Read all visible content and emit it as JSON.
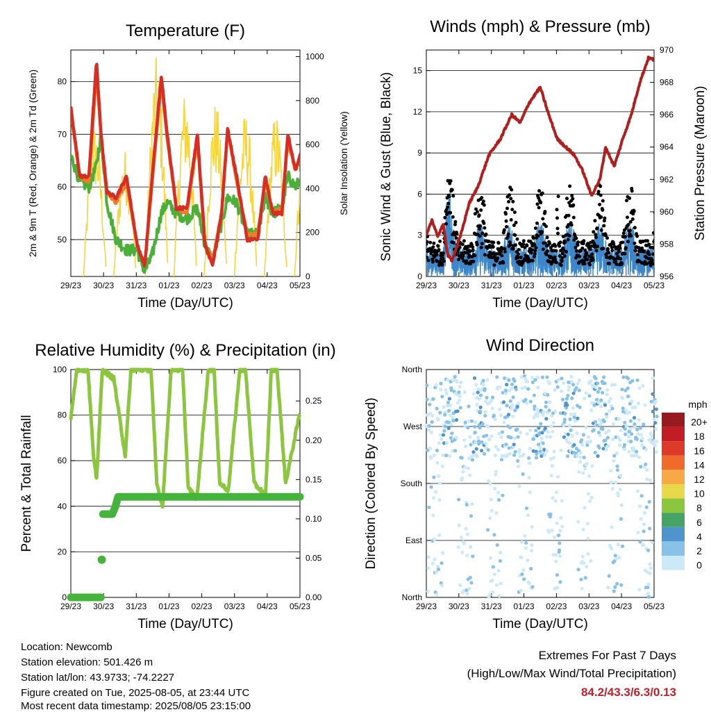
{
  "time_ticks": [
    "29/23",
    "30/23",
    "31/23",
    "01/23",
    "02/23",
    "03/23",
    "04/23",
    "05/23"
  ],
  "chart_data": [
    {
      "type": "line",
      "title": "Temperature (F)",
      "xlabel": "Time (Day/UTC)",
      "ylabel": "2m & 9m T (Red, Orange) & 2m Td (Green)",
      "y2label": "Solar Insolation (Yellow)",
      "ylim": [
        43,
        86
      ],
      "y2lim": [
        0,
        1030
      ],
      "yticks": [
        "50",
        "60",
        "70",
        "80"
      ],
      "y2ticks": [
        "0",
        "200",
        "400",
        "600",
        "800",
        "1000"
      ],
      "grid": "horizontal",
      "x_days": [
        0,
        0.3,
        0.6,
        0.85,
        1.0,
        1.2,
        1.5,
        1.85,
        2.2,
        2.45,
        2.7,
        3.0,
        3.2,
        3.5,
        3.85,
        4.2,
        4.45,
        4.7,
        5.0,
        5.2,
        5.5,
        5.85,
        6.2,
        6.45,
        6.7,
        7.0,
        7.2,
        7.45,
        7.7
      ],
      "series": [
        {
          "name": "2m T",
          "color": "#d62e24",
          "values": [
            75,
            62,
            62,
            84,
            70,
            59,
            58,
            62,
            49,
            45,
            62,
            81,
            70,
            56,
            56,
            70,
            49,
            45,
            55,
            71,
            62,
            50,
            50,
            62,
            55,
            55,
            70,
            63,
            68
          ]
        },
        {
          "name": "9m T",
          "color": "#f07d26",
          "values": [
            74,
            62,
            61,
            82,
            70,
            59,
            57,
            61,
            49,
            45,
            61,
            80,
            69,
            56,
            55,
            69,
            49,
            46,
            55,
            71,
            61,
            51,
            51,
            61,
            55,
            56,
            69,
            63,
            67
          ]
        },
        {
          "name": "2m Td",
          "color": "#4caf3a",
          "values": [
            66,
            61,
            60,
            64,
            70,
            57,
            50,
            48,
            48,
            44,
            47,
            55,
            57,
            55,
            54,
            56,
            49,
            46,
            53,
            58,
            57,
            51,
            51,
            58,
            55,
            56,
            62,
            60,
            62
          ]
        },
        {
          "name": "Solar Insolation",
          "color": "#f5d43c",
          "axis": "right",
          "peaks": [
            [
              0.8,
              700
            ],
            [
              1.8,
              580
            ],
            [
              2.85,
              1000
            ],
            [
              3.8,
              850
            ],
            [
              4.8,
              800
            ],
            [
              5.8,
              750
            ],
            [
              6.8,
              750
            ],
            [
              7.8,
              780
            ]
          ]
        }
      ]
    },
    {
      "type": "scatter",
      "title": "Winds (mph) & Pressure (mb)",
      "xlabel": "Time (Day/UTC)",
      "ylabel": "Sonic Wind & Gust (Blue, Black)",
      "y2label": "Station Pressure (Maroon)",
      "ylim": [
        0,
        16.5
      ],
      "y2lim": [
        956,
        970
      ],
      "yticks": [
        "0",
        "3",
        "6",
        "9",
        "12",
        "15"
      ],
      "y2ticks": [
        "956",
        "958",
        "960",
        "962",
        "964",
        "966",
        "968",
        "970"
      ],
      "grid": "horizontal",
      "series": [
        {
          "name": "Sonic Wind",
          "color": "#3d87c9"
        },
        {
          "name": "Gust",
          "color": "#000000"
        },
        {
          "name": "Station Pressure",
          "color": "#b01e1e",
          "axis": "right",
          "x_days": [
            0,
            0.2,
            0.4,
            0.6,
            0.75,
            0.9,
            1.2,
            1.5,
            1.8,
            2.2,
            2.6,
            3.0,
            3.3,
            3.6,
            4.0,
            4.3,
            4.6,
            4.9,
            5.2,
            5.5,
            5.8,
            6.1,
            6.3,
            6.6,
            6.9,
            7.2,
            7.5,
            7.8,
            8.0
          ],
          "values": [
            958.5,
            959.5,
            958.5,
            959.2,
            957.3,
            957.0,
            958.5,
            960.5,
            961.5,
            963.5,
            964.5,
            966.0,
            965.5,
            966.7,
            967.7,
            966.0,
            964.5,
            964.0,
            963.5,
            962.5,
            961.0,
            962.0,
            964.0,
            962.8,
            964.5,
            966.0,
            968.0,
            969.5,
            969.4
          ]
        }
      ]
    },
    {
      "type": "line",
      "title": "Relative Humidity (%) & Precipitation (in)",
      "xlabel": "Time (Day/UTC)",
      "ylabel": "Percent & Total Rainfall",
      "ylim": [
        0,
        100
      ],
      "y2lim": [
        0,
        0.29
      ],
      "yticks": [
        "0",
        "20",
        "40",
        "60",
        "80",
        "100"
      ],
      "y2ticks": [
        "0.00",
        "0.05",
        "0.10",
        "0.15",
        "0.20",
        "0.25"
      ],
      "grid": "horizontal",
      "series": [
        {
          "name": "Relative Humidity",
          "color": "#8cc63e",
          "x_days": [
            0,
            0.2,
            0.4,
            0.6,
            0.8,
            0.9,
            1.1,
            1.5,
            1.9,
            2.1,
            2.4,
            2.8,
            3.0,
            3.2,
            3.5,
            3.9,
            4.1,
            4.4,
            4.8,
            5.0,
            5.2,
            5.5,
            5.9,
            6.1,
            6.4,
            6.8,
            7.0,
            7.2,
            7.5,
            7.9,
            8.0
          ],
          "values": [
            78,
            100,
            100,
            100,
            60,
            52,
            100,
            96,
            62,
            100,
            100,
            100,
            50,
            40,
            100,
            100,
            48,
            43,
            100,
            100,
            50,
            47,
            100,
            100,
            50,
            45,
            100,
            100,
            50,
            75,
            81
          ]
        },
        {
          "name": "Total Precipitation",
          "color": "#46b43c",
          "axis": "right",
          "x_days": [
            0,
            1.05,
            1.08,
            1.12,
            1.45,
            1.55,
            1.65,
            8.0
          ],
          "values": [
            0.0,
            0.0,
            0.048,
            0.106,
            0.106,
            0.115,
            0.128,
            0.128
          ]
        }
      ]
    },
    {
      "type": "scatter",
      "title": "Wind Direction",
      "xlabel": "Time (Day/UTC)",
      "ylabel": "Direction (Colored By Speed)",
      "yticks": [
        "North",
        "East",
        "South",
        "West",
        "North"
      ],
      "grid": "horizontal",
      "legend": {
        "title": "mph",
        "labels": [
          "0",
          "2",
          "4",
          "6",
          "8",
          "10",
          "12",
          "14",
          "16",
          "18",
          "20+"
        ],
        "colors": [
          "#cce9f8",
          "#89c2e8",
          "#4f94cc",
          "#47a364",
          "#8cc63e",
          "#e8d94a",
          "#f7a948",
          "#f06a2a",
          "#de3a2a",
          "#c21c24",
          "#951b1e"
        ]
      }
    }
  ],
  "footer": {
    "location": "Location: Newcomb",
    "elevation": "Station elevation: 501.426 m",
    "latlon": "Station lat/lon: 43.9733; -74.2227",
    "created": "Figure created on Tue, 2025-08-05, at 23:44 UTC",
    "recent": "Most recent data timestamp: 2025/08/05 23:15:00"
  },
  "extremes": {
    "title": "Extremes For Past 7 Days",
    "subtitle": "(High/Low/Max Wind/Total Precipitation)",
    "values": "84.2/43.3/6.3/0.13"
  }
}
